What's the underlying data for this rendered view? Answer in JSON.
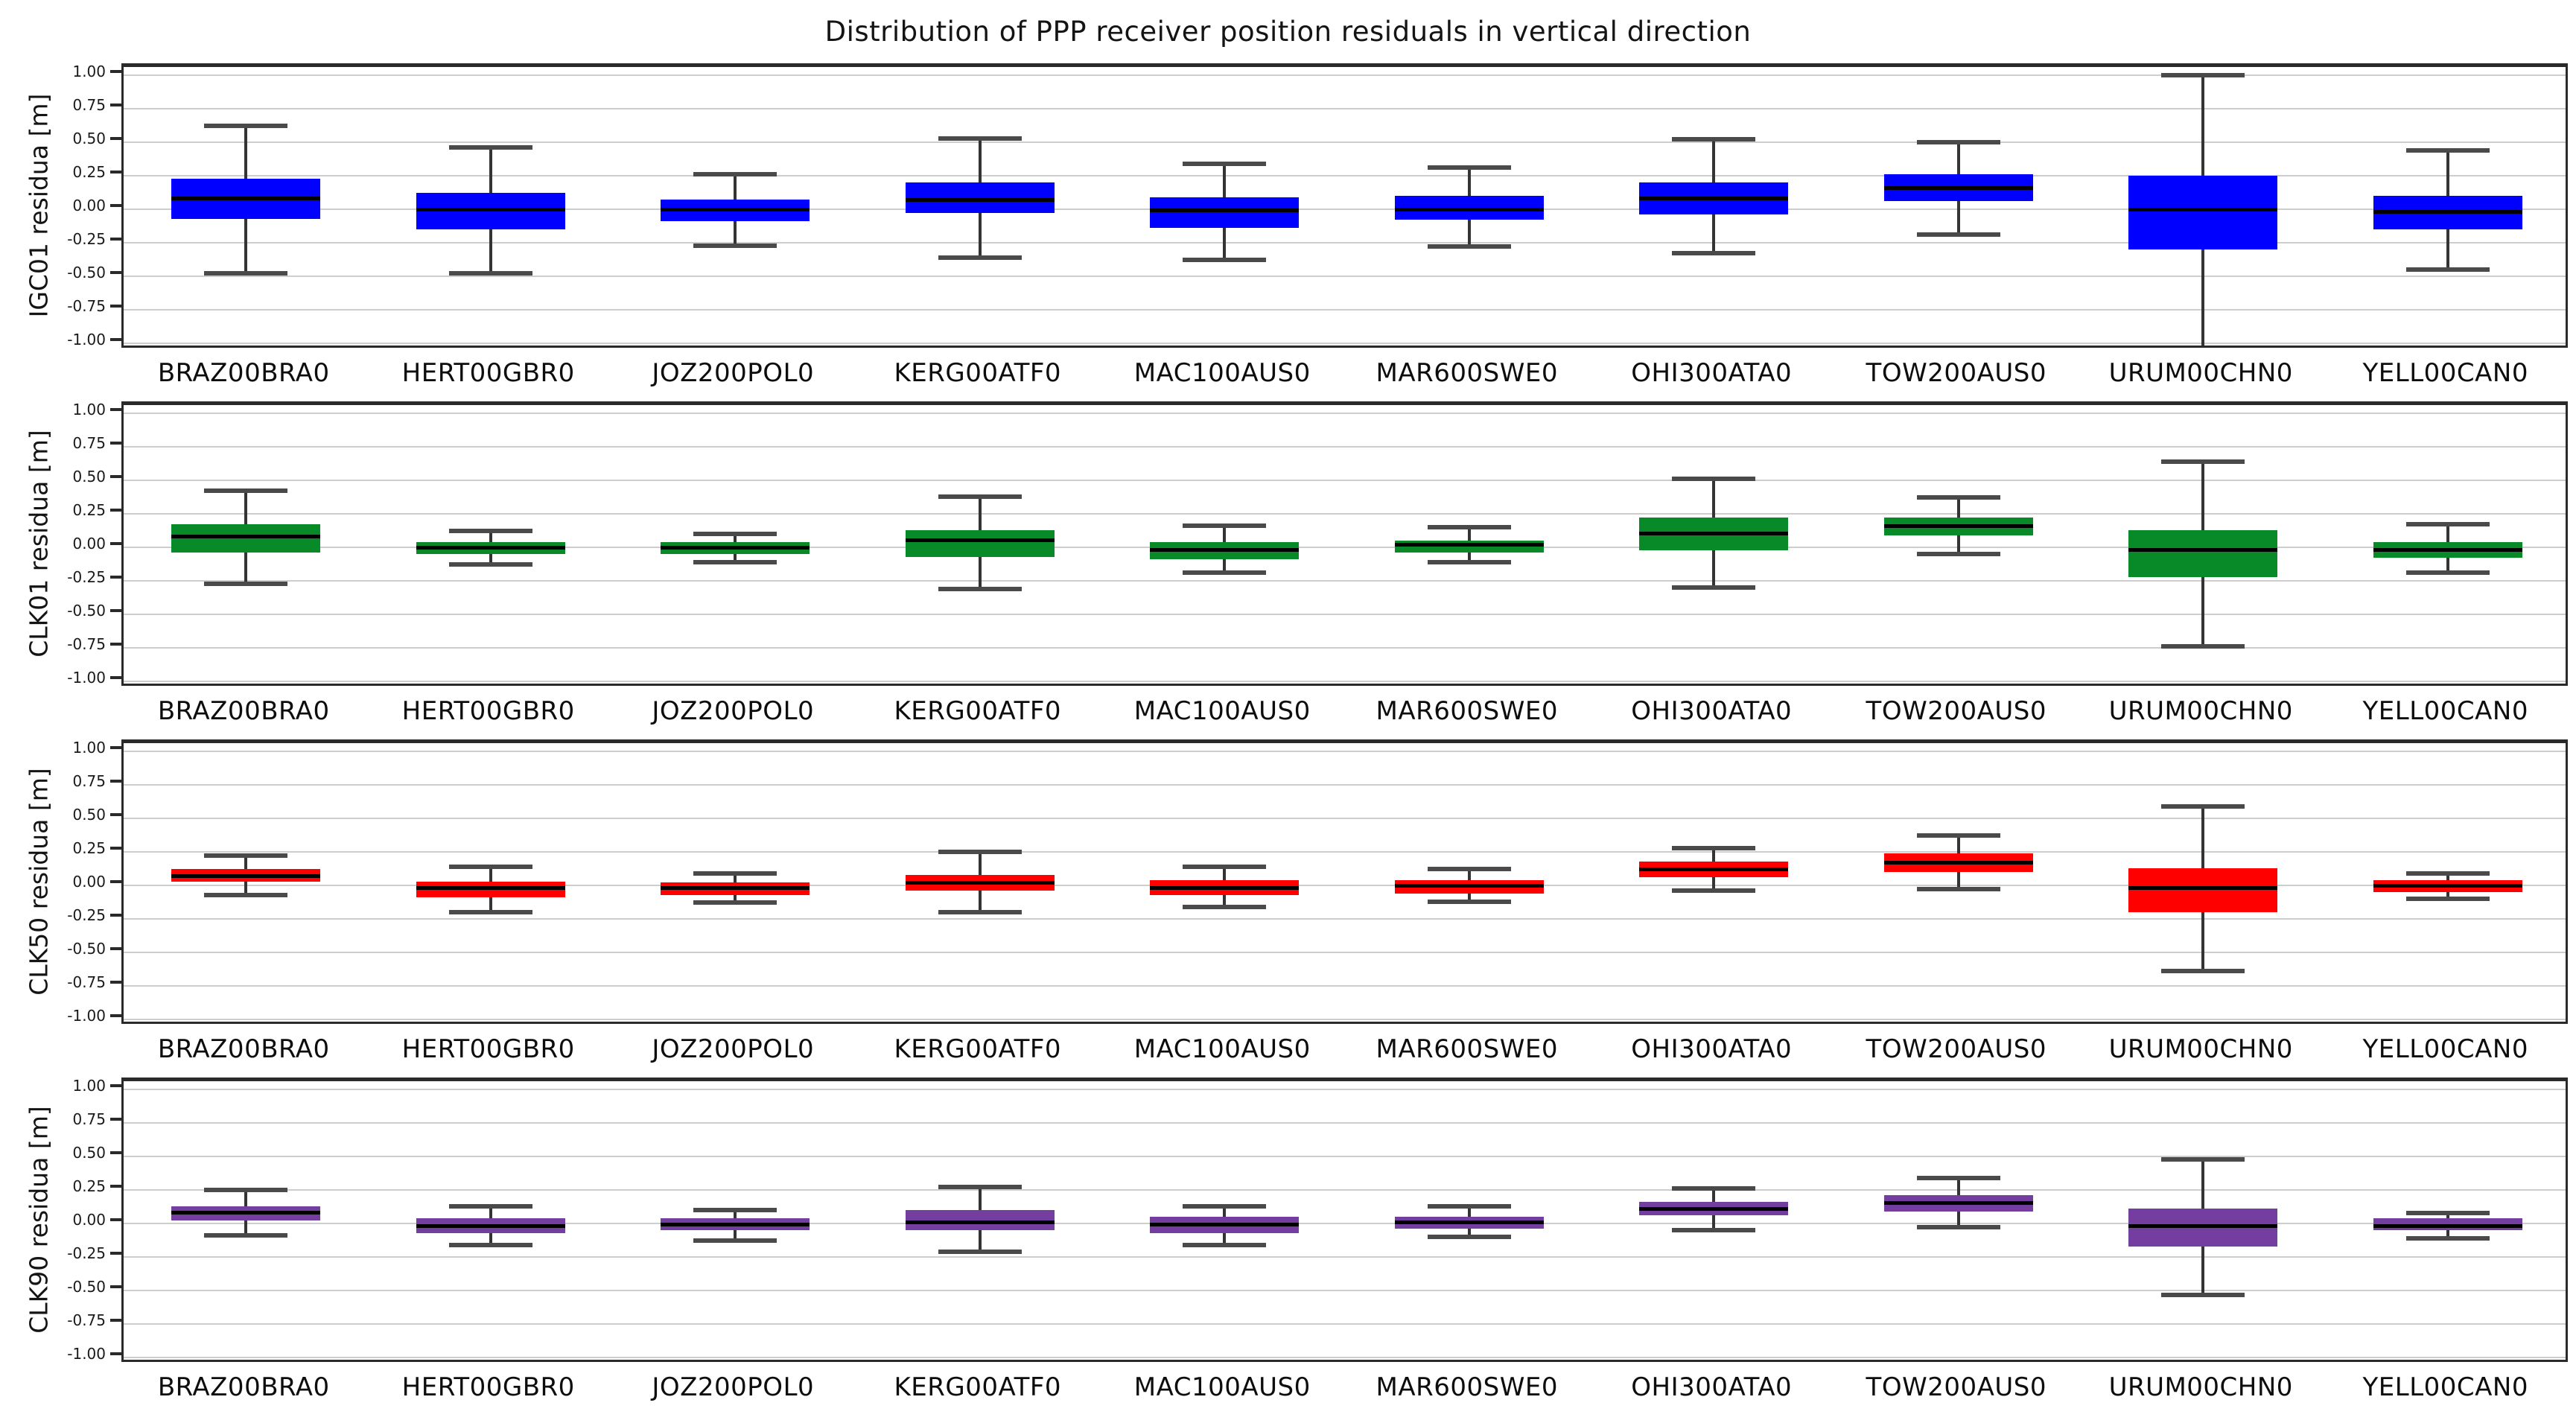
{
  "page": {
    "title": "Distribution of PPP receiver position residuals in vertical direction"
  },
  "chart_data": [
    {
      "type": "boxplot",
      "ylabel": "IGC01 residua [m]",
      "box_color": "#0000ff",
      "ylim": [
        -1.06,
        1.06
      ],
      "grid": true,
      "ytick_labels": [
        "1.00",
        "0.75",
        "0.50",
        "0.25",
        "0.00",
        "-0.25",
        "-0.50",
        "-0.75",
        "-1.00"
      ],
      "categories": [
        "BRAZ00BRA0",
        "HERT00GBR0",
        "JOZ200POL0",
        "KERG00ATF0",
        "MAC100AUS0",
        "MAR600SWE0",
        "OHI300ATA0",
        "TOW200AUS0",
        "URUM00CHN0",
        "YELL00CAN0"
      ],
      "boxes": [
        {
          "station": "BRAZ00BRA0",
          "whislo": -0.48,
          "q1": -0.07,
          "med": 0.08,
          "q3": 0.23,
          "whishi": 0.62
        },
        {
          "station": "HERT00GBR0",
          "whislo": -0.48,
          "q1": -0.15,
          "med": 0.0,
          "q3": 0.12,
          "whishi": 0.46
        },
        {
          "station": "JOZ200POL0",
          "whislo": -0.27,
          "q1": -0.09,
          "med": 0.0,
          "q3": 0.07,
          "whishi": 0.26
        },
        {
          "station": "KERG00ATF0",
          "whislo": -0.36,
          "q1": -0.03,
          "med": 0.07,
          "q3": 0.2,
          "whishi": 0.53
        },
        {
          "station": "MAC100AUS0",
          "whislo": -0.38,
          "q1": -0.14,
          "med": -0.01,
          "q3": 0.09,
          "whishi": 0.34
        },
        {
          "station": "MAR600SWE0",
          "whislo": -0.28,
          "q1": -0.08,
          "med": 0.0,
          "q3": 0.1,
          "whishi": 0.31
        },
        {
          "station": "OHI300ATA0",
          "whislo": -0.33,
          "q1": -0.04,
          "med": 0.08,
          "q3": 0.2,
          "whishi": 0.52
        },
        {
          "station": "TOW200AUS0",
          "whislo": -0.19,
          "q1": 0.06,
          "med": 0.16,
          "q3": 0.26,
          "whishi": 0.5
        },
        {
          "station": "URUM00CHN0",
          "whislo": -1.05,
          "q1": -0.3,
          "med": 0.0,
          "q3": 0.25,
          "whishi": 1.0
        },
        {
          "station": "YELL00CAN0",
          "whislo": -0.45,
          "q1": -0.15,
          "med": -0.02,
          "q3": 0.1,
          "whishi": 0.44
        }
      ]
    },
    {
      "type": "boxplot",
      "ylabel": "CLK01 residua [m]",
      "box_color": "#088a28",
      "ylim": [
        -1.06,
        1.06
      ],
      "grid": true,
      "ytick_labels": [
        "1.00",
        "0.75",
        "0.50",
        "0.25",
        "0.00",
        "-0.25",
        "-0.50",
        "-0.75",
        "-1.00"
      ],
      "categories": [
        "BRAZ00BRA0",
        "HERT00GBR0",
        "JOZ200POL0",
        "KERG00ATF0",
        "MAC100AUS0",
        "MAR600SWE0",
        "OHI300ATA0",
        "TOW200AUS0",
        "URUM00CHN0",
        "YELL00CAN0"
      ],
      "boxes": [
        {
          "station": "BRAZ00BRA0",
          "whislo": -0.27,
          "q1": -0.04,
          "med": 0.08,
          "q3": 0.17,
          "whishi": 0.42
        },
        {
          "station": "HERT00GBR0",
          "whislo": -0.13,
          "q1": -0.05,
          "med": 0.0,
          "q3": 0.04,
          "whishi": 0.12
        },
        {
          "station": "JOZ200POL0",
          "whislo": -0.11,
          "q1": -0.05,
          "med": 0.0,
          "q3": 0.04,
          "whishi": 0.1
        },
        {
          "station": "KERG00ATF0",
          "whislo": -0.31,
          "q1": -0.07,
          "med": 0.05,
          "q3": 0.13,
          "whishi": 0.38
        },
        {
          "station": "MAC100AUS0",
          "whislo": -0.19,
          "q1": -0.09,
          "med": -0.02,
          "q3": 0.04,
          "whishi": 0.16
        },
        {
          "station": "MAR600SWE0",
          "whislo": -0.11,
          "q1": -0.04,
          "med": 0.02,
          "q3": 0.05,
          "whishi": 0.15
        },
        {
          "station": "OHI300ATA0",
          "whislo": -0.3,
          "q1": -0.02,
          "med": 0.1,
          "q3": 0.22,
          "whishi": 0.51
        },
        {
          "station": "TOW200AUS0",
          "whislo": -0.05,
          "q1": 0.09,
          "med": 0.16,
          "q3": 0.22,
          "whishi": 0.37
        },
        {
          "station": "URUM00CHN0",
          "whislo": -0.74,
          "q1": -0.22,
          "med": -0.02,
          "q3": 0.13,
          "whishi": 0.64
        },
        {
          "station": "YELL00CAN0",
          "whislo": -0.19,
          "q1": -0.08,
          "med": -0.02,
          "q3": 0.04,
          "whishi": 0.17
        }
      ]
    },
    {
      "type": "boxplot",
      "ylabel": "CLK50 residua [m]",
      "box_color": "#ff0000",
      "ylim": [
        -1.06,
        1.06
      ],
      "grid": true,
      "ytick_labels": [
        "1.00",
        "0.75",
        "0.50",
        "0.25",
        "0.00",
        "-0.25",
        "-0.50",
        "-0.75",
        "-1.00"
      ],
      "categories": [
        "BRAZ00BRA0",
        "HERT00GBR0",
        "JOZ200POL0",
        "KERG00ATF0",
        "MAC100AUS0",
        "MAR600SWE0",
        "OHI300ATA0",
        "TOW200AUS0",
        "URUM00CHN0",
        "YELL00CAN0"
      ],
      "boxes": [
        {
          "station": "BRAZ00BRA0",
          "whislo": -0.07,
          "q1": 0.03,
          "med": 0.07,
          "q3": 0.12,
          "whishi": 0.22
        },
        {
          "station": "HERT00GBR0",
          "whislo": -0.2,
          "q1": -0.09,
          "med": -0.02,
          "q3": 0.03,
          "whishi": 0.14
        },
        {
          "station": "JOZ200POL0",
          "whislo": -0.13,
          "q1": -0.07,
          "med": -0.02,
          "q3": 0.02,
          "whishi": 0.09
        },
        {
          "station": "KERG00ATF0",
          "whislo": -0.2,
          "q1": -0.04,
          "med": 0.02,
          "q3": 0.08,
          "whishi": 0.25
        },
        {
          "station": "MAC100AUS0",
          "whislo": -0.16,
          "q1": -0.07,
          "med": -0.02,
          "q3": 0.04,
          "whishi": 0.14
        },
        {
          "station": "MAR600SWE0",
          "whislo": -0.12,
          "q1": -0.06,
          "med": 0.0,
          "q3": 0.04,
          "whishi": 0.12
        },
        {
          "station": "OHI300ATA0",
          "whislo": -0.04,
          "q1": 0.06,
          "med": 0.12,
          "q3": 0.18,
          "whishi": 0.28
        },
        {
          "station": "TOW200AUS0",
          "whislo": -0.03,
          "q1": 0.1,
          "med": 0.17,
          "q3": 0.24,
          "whishi": 0.37
        },
        {
          "station": "URUM00CHN0",
          "whislo": -0.64,
          "q1": -0.2,
          "med": -0.02,
          "q3": 0.13,
          "whishi": 0.59
        },
        {
          "station": "YELL00CAN0",
          "whislo": -0.1,
          "q1": -0.05,
          "med": 0.0,
          "q3": 0.04,
          "whishi": 0.09
        }
      ]
    },
    {
      "type": "boxplot",
      "ylabel": "CLK90 residua [m]",
      "box_color": "#733ea0",
      "ylim": [
        -1.06,
        1.06
      ],
      "grid": true,
      "ytick_labels": [
        "1.00",
        "0.75",
        "0.50",
        "0.25",
        "0.00",
        "-0.25",
        "-0.50",
        "-0.75",
        "-1.00"
      ],
      "categories": [
        "BRAZ00BRA0",
        "HERT00GBR0",
        "JOZ200POL0",
        "KERG00ATF0",
        "MAC100AUS0",
        "MAR600SWE0",
        "OHI300ATA0",
        "TOW200AUS0",
        "URUM00CHN0",
        "YELL00CAN0"
      ],
      "boxes": [
        {
          "station": "BRAZ00BRA0",
          "whislo": -0.09,
          "q1": 0.02,
          "med": 0.08,
          "q3": 0.13,
          "whishi": 0.25
        },
        {
          "station": "HERT00GBR0",
          "whislo": -0.16,
          "q1": -0.07,
          "med": -0.02,
          "q3": 0.04,
          "whishi": 0.13
        },
        {
          "station": "JOZ200POL0",
          "whislo": -0.13,
          "q1": -0.05,
          "med": -0.01,
          "q3": 0.04,
          "whishi": 0.1
        },
        {
          "station": "KERG00ATF0",
          "whislo": -0.21,
          "q1": -0.05,
          "med": 0.01,
          "q3": 0.1,
          "whishi": 0.27
        },
        {
          "station": "MAC100AUS0",
          "whislo": -0.16,
          "q1": -0.07,
          "med": -0.01,
          "q3": 0.05,
          "whishi": 0.13
        },
        {
          "station": "MAR600SWE0",
          "whislo": -0.1,
          "q1": -0.04,
          "med": 0.01,
          "q3": 0.05,
          "whishi": 0.13
        },
        {
          "station": "OHI300ATA0",
          "whislo": -0.05,
          "q1": 0.06,
          "med": 0.11,
          "q3": 0.16,
          "whishi": 0.26
        },
        {
          "station": "TOW200AUS0",
          "whislo": -0.03,
          "q1": 0.09,
          "med": 0.15,
          "q3": 0.21,
          "whishi": 0.34
        },
        {
          "station": "URUM00CHN0",
          "whislo": -0.53,
          "q1": -0.17,
          "med": -0.02,
          "q3": 0.11,
          "whishi": 0.48
        },
        {
          "station": "YELL00CAN0",
          "whislo": -0.11,
          "q1": -0.05,
          "med": -0.02,
          "q3": 0.04,
          "whishi": 0.08
        }
      ]
    }
  ]
}
